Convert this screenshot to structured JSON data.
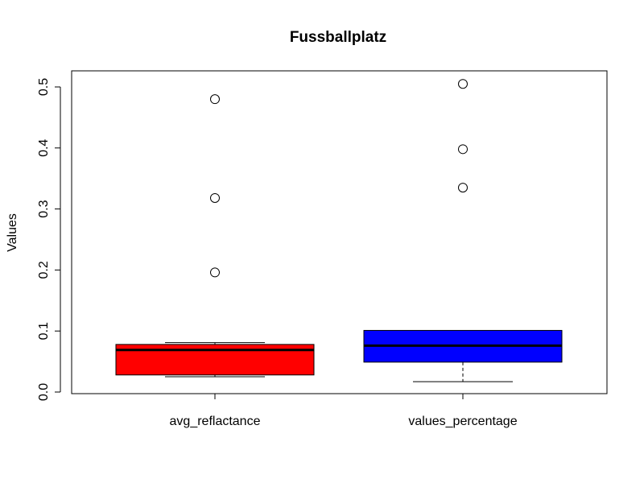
{
  "chart_data": {
    "type": "boxplot",
    "title": "Fussballplatz",
    "xlabel": "",
    "ylabel": "Values",
    "ylim": [
      0,
      0.52
    ],
    "y_ticks": [
      "0.0",
      "0.1",
      "0.2",
      "0.3",
      "0.4",
      "0.5"
    ],
    "y_tick_values": [
      0,
      0.1,
      0.2,
      0.3,
      0.4,
      0.5
    ],
    "grid": false,
    "legend": "none",
    "categories": [
      "avg_reflactance",
      "values_percentage"
    ],
    "series": [
      {
        "category": "avg_reflactance",
        "color": "#ff0000",
        "whisker_low": 0.025,
        "q1": 0.028,
        "median": 0.069,
        "q3": 0.078,
        "whisker_high": 0.081,
        "outliers": [
          0.196,
          0.318,
          0.48
        ]
      },
      {
        "category": "values_percentage",
        "color": "#0000ff",
        "whisker_low": 0.017,
        "q1": 0.049,
        "median": 0.076,
        "q3": 0.101,
        "whisker_high": 0.101,
        "outliers": [
          0.335,
          0.398,
          0.505
        ]
      }
    ]
  }
}
